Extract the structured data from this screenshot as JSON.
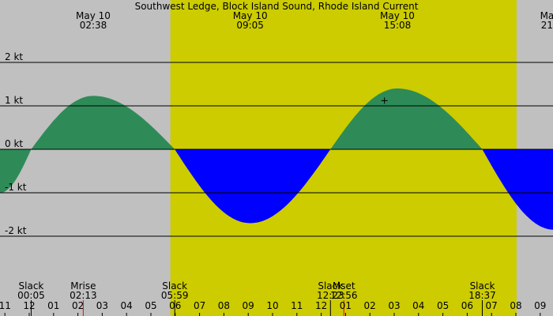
{
  "chart_data": {
    "type": "area",
    "title": "Southwest Ledge, Block Island Sound, Rhode Island Current",
    "xlabel": "",
    "ylabel": "",
    "x_unit": "hours",
    "xlim": [
      -1.2,
      21.55
    ],
    "ylim": [
      -3.4,
      3.4
    ],
    "grid": true,
    "y_gridlines": [
      2,
      1,
      0,
      -1,
      -2
    ],
    "y_tick_labels": [
      "2 kt",
      "1 kt",
      "0 kt",
      "-1 kt",
      "-2 kt"
    ],
    "x_tick_labels": [
      "11",
      "12",
      "01",
      "02",
      "03",
      "04",
      "05",
      "06",
      "07",
      "08",
      "09",
      "10",
      "11",
      "12",
      "01",
      "02",
      "03",
      "04",
      "05",
      "06",
      "07",
      "08",
      "09"
    ],
    "daylight": {
      "start": 5.8,
      "end": 20.03
    },
    "colors": {
      "flood": "#0000ff",
      "ebb": "#2e8b57",
      "day": "#cccc00",
      "night": "#c0c0c0",
      "moon_tick": "#ff0000"
    },
    "series": [
      {
        "x": [
          -1.2,
          0.08,
          2.63,
          5.98,
          9.08,
          12.38,
          15.13,
          18.62,
          21.55
        ],
        "y": [
          -1.0,
          0,
          1.23,
          0,
          -1.7,
          0,
          1.4,
          0,
          -1.85
        ]
      }
    ],
    "current_marker": {
      "x": 14.6,
      "y": 1.12
    },
    "peak_labels": [
      {
        "x": 2.63,
        "date": "May 10",
        "time": "02:38"
      },
      {
        "x": 9.08,
        "date": "May 10",
        "time": "09:05"
      },
      {
        "x": 15.13,
        "date": "May 10",
        "time": "15:08"
      },
      {
        "x": 21.28,
        "date": "Ma",
        "time": "21"
      }
    ],
    "events": [
      {
        "x": 0.08,
        "label": "Slack",
        "time": "00:05"
      },
      {
        "x": 2.22,
        "label": "Mrise",
        "time": "02:13"
      },
      {
        "x": 5.98,
        "label": "Slack",
        "time": "05:59"
      },
      {
        "x": 12.38,
        "label": "Slack",
        "time": "12:23"
      },
      {
        "x": 12.93,
        "label": "Mset",
        "time": "12:56"
      },
      {
        "x": 18.62,
        "label": "Slack",
        "time": "18:37"
      }
    ]
  }
}
